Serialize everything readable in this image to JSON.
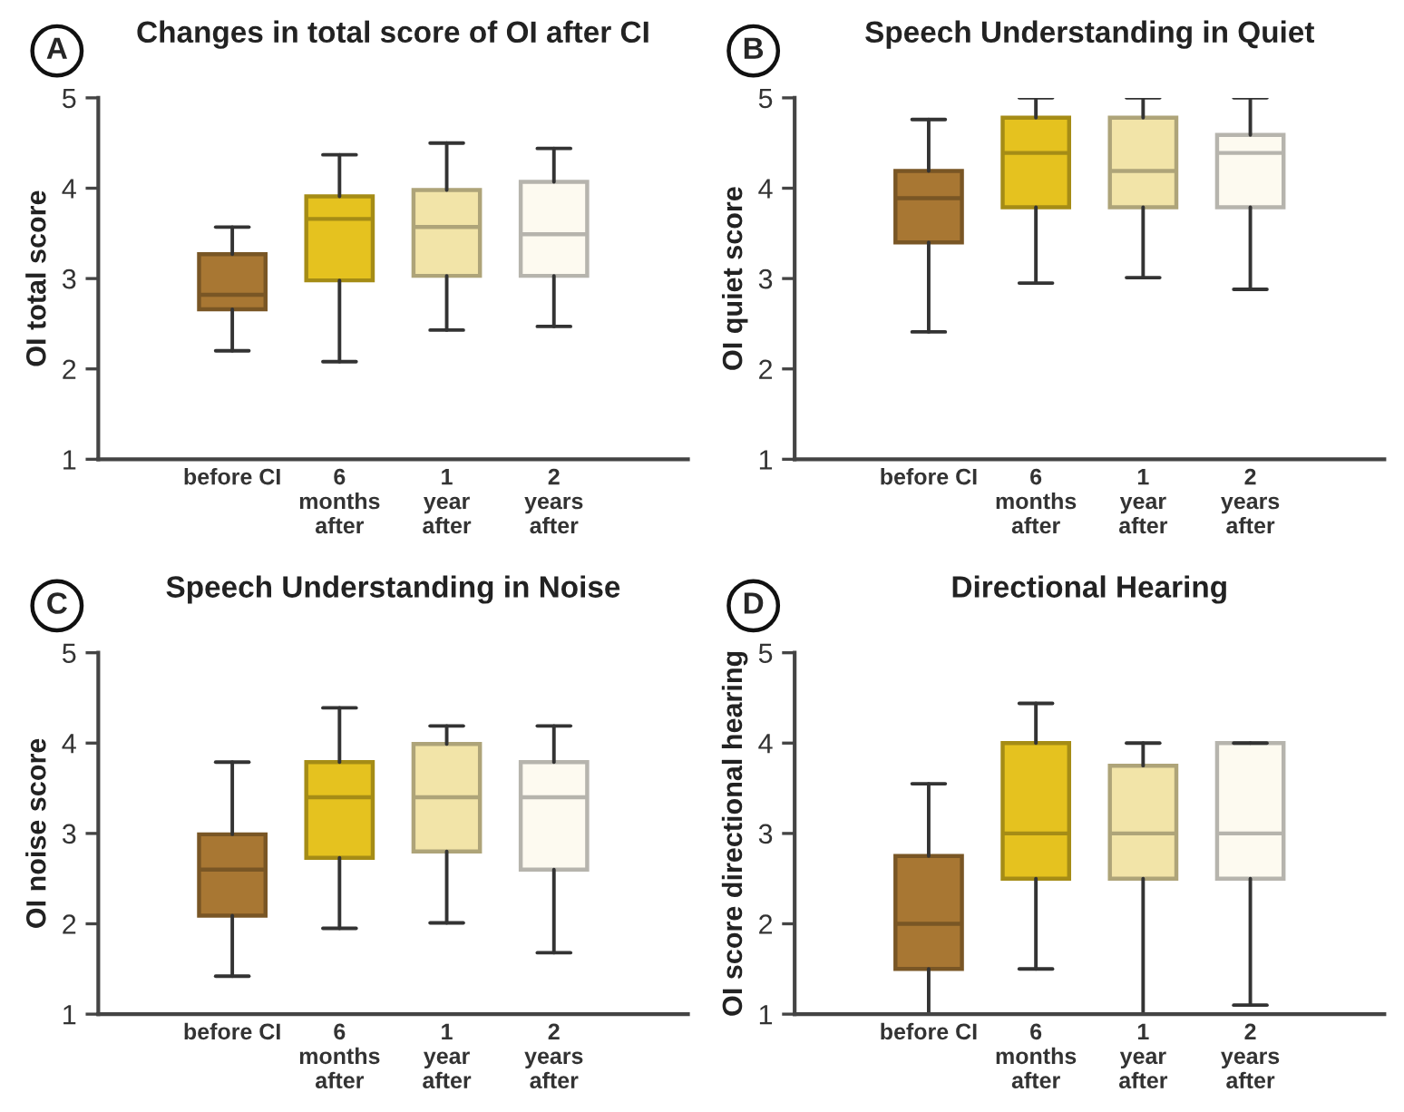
{
  "chart_data": [
    {
      "type": "box",
      "title": "Changes in total score of OI after CI",
      "ylabel": "OI total score",
      "annotations": [
        "A"
      ],
      "categories": [
        "before CI",
        "6\nmonths\nafter",
        "1\nyear\nafter",
        "2\nyears\nafter"
      ],
      "colors": [
        "#a87733",
        "#e5c21f",
        "#f2e4a8",
        "#fdfaf0"
      ],
      "ylim": [
        1,
        5
      ],
      "yticks": [
        1,
        2,
        3,
        4,
        5
      ],
      "grid": false,
      "boxes": [
        {
          "low": 2.2,
          "q1": 2.66,
          "median": 2.82,
          "q3": 3.27,
          "high": 3.57
        },
        {
          "low": 2.08,
          "q1": 2.98,
          "median": 3.66,
          "q3": 3.91,
          "high": 4.37
        },
        {
          "low": 2.43,
          "q1": 3.03,
          "median": 3.57,
          "q3": 3.98,
          "high": 4.5
        },
        {
          "low": 2.47,
          "q1": 3.03,
          "median": 3.49,
          "q3": 4.07,
          "high": 4.44
        }
      ]
    },
    {
      "type": "box",
      "title": "Speech Understanding in Quiet",
      "ylabel": "OI quiet score",
      "annotations": [
        "B"
      ],
      "categories": [
        "before CI",
        "6\nmonths\nafter",
        "1\nyear\nafter",
        "2\nyears\nafter"
      ],
      "colors": [
        "#a87733",
        "#e5c21f",
        "#f2e4a8",
        "#fdfaf0"
      ],
      "ylim": [
        1,
        5
      ],
      "yticks": [
        1,
        2,
        3,
        4,
        5
      ],
      "grid": false,
      "boxes": [
        {
          "low": 2.41,
          "q1": 3.4,
          "median": 3.89,
          "q3": 4.19,
          "high": 4.76
        },
        {
          "low": 2.95,
          "q1": 3.79,
          "median": 4.39,
          "q3": 4.78,
          "high": 5
        },
        {
          "low": 3.01,
          "q1": 3.79,
          "median": 4.19,
          "q3": 4.78,
          "high": 5
        },
        {
          "low": 2.88,
          "q1": 3.79,
          "median": 4.39,
          "q3": 4.59,
          "high": 5
        }
      ]
    },
    {
      "type": "box",
      "title": "Speech Understanding in Noise",
      "ylabel": "OI noise score",
      "annotations": [
        "C"
      ],
      "categories": [
        "before CI",
        "6\nmonths\nafter",
        "1\nyear\nafter",
        "2\nyears\nafter"
      ],
      "colors": [
        "#a87733",
        "#e5c21f",
        "#f2e4a8",
        "#fdfaf0"
      ],
      "ylim": [
        1,
        5
      ],
      "yticks": [
        1,
        2,
        3,
        4,
        5
      ],
      "grid": false,
      "boxes": [
        {
          "low": 1.42,
          "q1": 2.09,
          "median": 2.6,
          "q3": 2.99,
          "high": 3.79
        },
        {
          "low": 1.95,
          "q1": 2.73,
          "median": 3.4,
          "q3": 3.79,
          "high": 4.39
        },
        {
          "low": 2.01,
          "q1": 2.8,
          "median": 3.4,
          "q3": 3.99,
          "high": 4.19
        },
        {
          "low": 1.68,
          "q1": 2.6,
          "median": 3.4,
          "q3": 3.79,
          "high": 4.19
        }
      ]
    },
    {
      "type": "box",
      "title": "Directional Hearing",
      "ylabel": "OI score directional hearing",
      "annotations": [
        "D"
      ],
      "categories": [
        "before CI",
        "6\nmonths\nafter",
        "1\nyear\nafter",
        "2\nyears\nafter"
      ],
      "colors": [
        "#a87733",
        "#e5c21f",
        "#f2e4a8",
        "#fdfaf0"
      ],
      "ylim": [
        1,
        5
      ],
      "yticks": [
        1,
        2,
        3,
        4,
        5
      ],
      "grid": false,
      "boxes": [
        {
          "low": 1.0,
          "q1": 1.5,
          "median": 2.0,
          "q3": 2.75,
          "high": 3.55
        },
        {
          "low": 1.5,
          "q1": 2.5,
          "median": 3.0,
          "q3": 4.0,
          "high": 4.44
        },
        {
          "low": 1.0,
          "q1": 2.5,
          "median": 3.0,
          "q3": 3.75,
          "high": 4.0
        },
        {
          "low": 1.1,
          "q1": 2.5,
          "median": 3.0,
          "q3": 4.0,
          "high": 4.0
        }
      ]
    }
  ]
}
